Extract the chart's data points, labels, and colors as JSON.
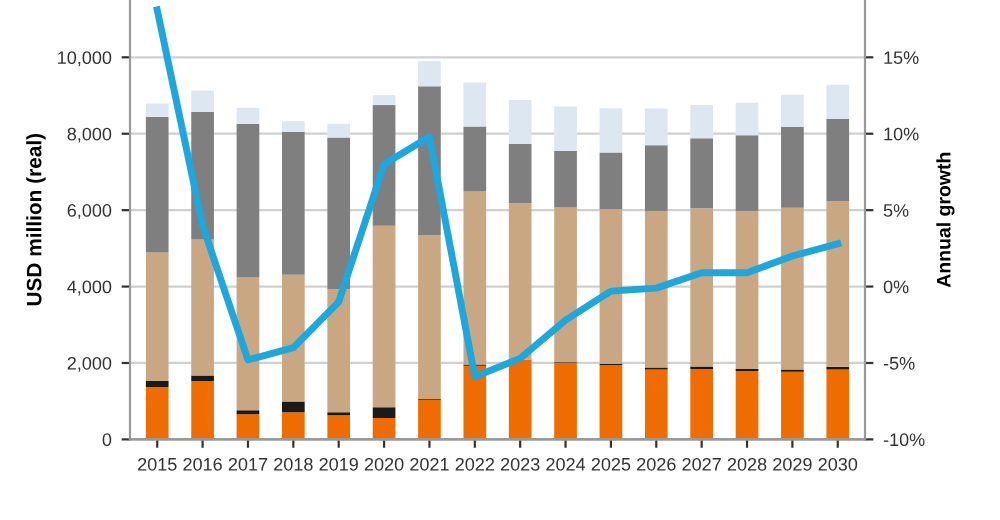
{
  "chart_data": {
    "type": "bar",
    "stacked": true,
    "ylabel": "USD million (real)",
    "y2label": "Annual growth",
    "categories": [
      "2015",
      "2016",
      "2017",
      "2018",
      "2019",
      "2020",
      "2021",
      "2022",
      "2023",
      "2024",
      "2025",
      "2026",
      "2027",
      "2028",
      "2029",
      "2030"
    ],
    "series": [
      {
        "color": "#ef6c00",
        "values": [
          1370,
          1530,
          660,
          710,
          630,
          560,
          1040,
          1930,
          2090,
          2000,
          1950,
          1830,
          1840,
          1790,
          1770,
          1830
        ]
      },
      {
        "color": "#1a1a1a",
        "values": [
          160,
          140,
          100,
          280,
          80,
          280,
          20,
          30,
          null,
          20,
          30,
          50,
          70,
          50,
          60,
          70
        ]
      },
      {
        "color": "#c9a783",
        "values": [
          3360,
          3560,
          3480,
          3320,
          3220,
          4750,
          4280,
          4530,
          4090,
          4050,
          4050,
          4100,
          4140,
          4140,
          4230,
          4330
        ]
      },
      {
        "color": "#7f7f7f",
        "values": [
          3550,
          3340,
          4020,
          3740,
          3970,
          3160,
          3900,
          1700,
          1550,
          1480,
          1480,
          1720,
          1830,
          1980,
          2120,
          2160
        ]
      },
      {
        "color": "#dde7f1",
        "values": [
          350,
          560,
          420,
          280,
          360,
          260,
          660,
          1150,
          1150,
          1160,
          1160,
          960,
          870,
          850,
          840,
          890
        ]
      },
      {
        "type": "line",
        "axis": "y2",
        "color": "#1ea7dc",
        "values": [
          18.1,
          4.0,
          -4.8,
          -4.0,
          -1.0,
          8.0,
          9.8,
          -5.9,
          -4.7,
          -2.2,
          -0.3,
          -0.1,
          0.9,
          0.9,
          2.0,
          2.8
        ]
      }
    ],
    "ylim": [
      0,
      11500
    ],
    "yticks": [
      0,
      {
        "value": 2000,
        "label": "2,000"
      },
      {
        "value": 4000,
        "label": "4,000"
      },
      {
        "value": 6000,
        "label": "6,000"
      },
      {
        "value": 8000,
        "label": "8,000"
      },
      {
        "value": 10000,
        "label": "10,000"
      }
    ],
    "y2lim": [
      -10,
      18.75
    ],
    "y2ticks": [
      {
        "value": -10,
        "label": "-10%"
      },
      {
        "value": -5,
        "label": "-5%"
      },
      {
        "value": 0,
        "label": "0%"
      },
      {
        "value": 5,
        "label": "5%"
      },
      {
        "value": 10,
        "label": "10%"
      },
      {
        "value": 15,
        "label": "15%"
      }
    ],
    "grid": "y"
  }
}
